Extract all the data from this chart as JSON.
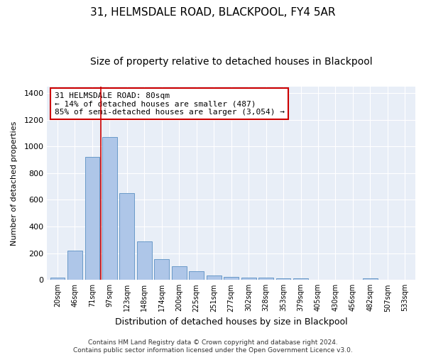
{
  "title1": "31, HELMSDALE ROAD, BLACKPOOL, FY4 5AR",
  "title2": "Size of property relative to detached houses in Blackpool",
  "xlabel": "Distribution of detached houses by size in Blackpool",
  "ylabel": "Number of detached properties",
  "categories": [
    "20sqm",
    "46sqm",
    "71sqm",
    "97sqm",
    "123sqm",
    "148sqm",
    "174sqm",
    "200sqm",
    "225sqm",
    "251sqm",
    "277sqm",
    "302sqm",
    "328sqm",
    "353sqm",
    "379sqm",
    "405sqm",
    "430sqm",
    "456sqm",
    "482sqm",
    "507sqm",
    "533sqm"
  ],
  "values": [
    15,
    220,
    920,
    1070,
    650,
    290,
    155,
    100,
    65,
    35,
    22,
    20,
    15,
    12,
    10,
    0,
    0,
    0,
    10,
    0,
    0
  ],
  "bar_color": "#aec6e8",
  "bar_edge_color": "#5a8fc2",
  "vline_color": "#cc0000",
  "vline_pos": 2.5,
  "annotation_line1": "31 HELMSDALE ROAD: 80sqm",
  "annotation_line2": "← 14% of detached houses are smaller (487)",
  "annotation_line3": "85% of semi-detached houses are larger (3,054) →",
  "annotation_box_color": "#ffffff",
  "annotation_edge_color": "#cc0000",
  "ylim": [
    0,
    1450
  ],
  "yticks": [
    0,
    200,
    400,
    600,
    800,
    1000,
    1200,
    1400
  ],
  "background_color": "#e8eef7",
  "footer_text": "Contains HM Land Registry data © Crown copyright and database right 2024.\nContains public sector information licensed under the Open Government Licence v3.0.",
  "title1_fontsize": 11,
  "title2_fontsize": 10,
  "xlabel_fontsize": 9,
  "ylabel_fontsize": 8,
  "ytick_fontsize": 8,
  "xtick_fontsize": 7,
  "annotation_fontsize": 8,
  "footer_fontsize": 6.5
}
